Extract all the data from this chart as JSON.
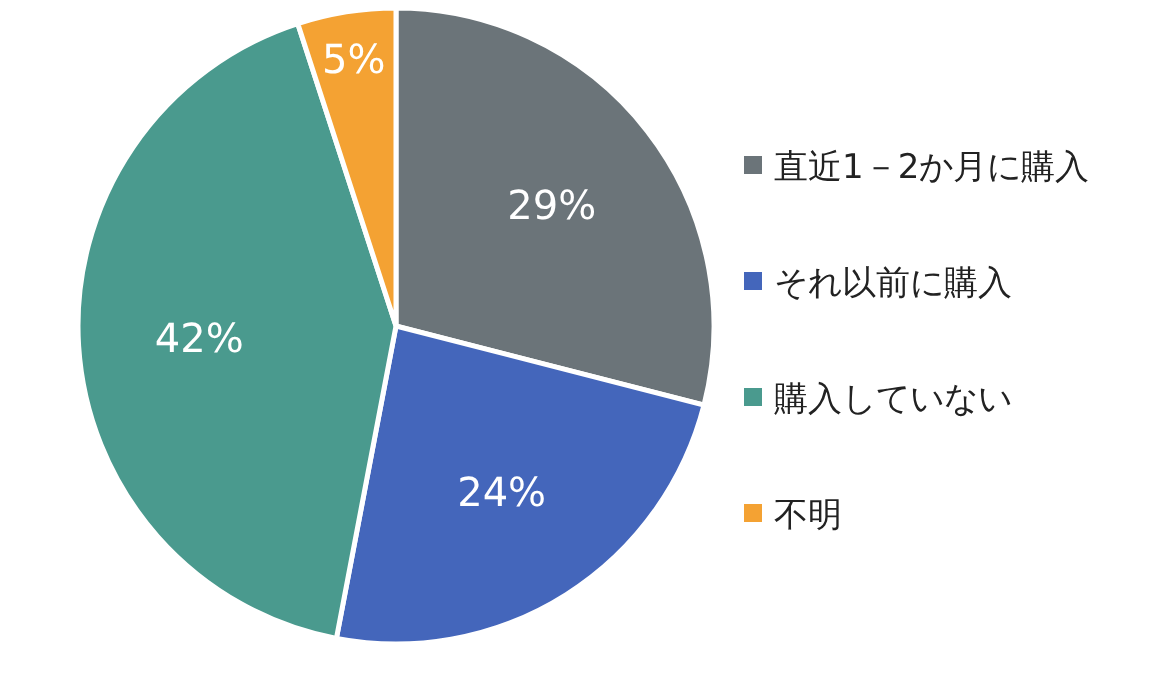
{
  "chart_data": {
    "type": "pie",
    "categories": [
      "直近1－2か月に購入",
      "それ以前に購入",
      "購入していない",
      "不明"
    ],
    "values": [
      29,
      24,
      42,
      5
    ],
    "colors": [
      "#6b7479",
      "#4466bb",
      "#4a9a8e",
      "#f4a233"
    ],
    "value_labels": [
      "29%",
      "24%",
      "42%",
      "5%"
    ],
    "legend": "right"
  }
}
